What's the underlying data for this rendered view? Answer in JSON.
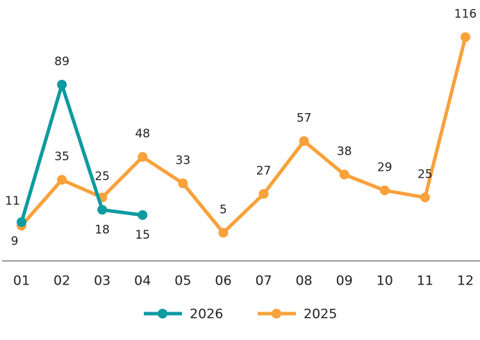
{
  "chart_data": {
    "type": "line",
    "categories": [
      "01",
      "02",
      "03",
      "04",
      "05",
      "06",
      "07",
      "08",
      "09",
      "10",
      "11",
      "12"
    ],
    "series": [
      {
        "name": "2026",
        "color": "#0e9aa0",
        "values": [
          11,
          89,
          18,
          15,
          null,
          null,
          null,
          null,
          null,
          null,
          null,
          null
        ]
      },
      {
        "name": "2025",
        "color": "#f9a13a",
        "values": [
          9,
          35,
          25,
          48,
          33,
          5,
          27,
          57,
          38,
          29,
          25,
          116
        ]
      }
    ],
    "ylim": [
      -11,
      125
    ]
  }
}
